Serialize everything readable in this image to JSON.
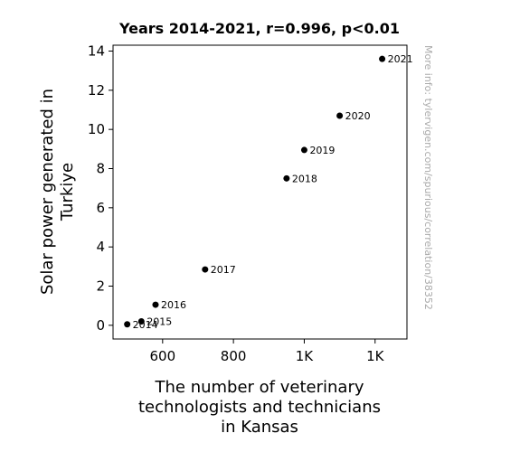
{
  "chart_data": {
    "type": "scatter",
    "title": "Years 2014-2021, r=0.996, p<0.01",
    "xlabel": [
      "The number of veterinary",
      "technologists and technicians",
      "in Kansas"
    ],
    "ylabel": [
      "Solar power generated in",
      "Turkiye"
    ],
    "xlim": [
      460,
      1290
    ],
    "ylim": [
      -0.7,
      14.3
    ],
    "x_ticks": [
      {
        "value": 600,
        "label": "600"
      },
      {
        "value": 800,
        "label": "800"
      },
      {
        "value": 1000,
        "label": "1K"
      },
      {
        "value": 1200,
        "label": "1K"
      }
    ],
    "y_ticks": [
      {
        "value": 0,
        "label": "0"
      },
      {
        "value": 2,
        "label": "2"
      },
      {
        "value": 4,
        "label": "4"
      },
      {
        "value": 6,
        "label": "6"
      },
      {
        "value": 8,
        "label": "8"
      },
      {
        "value": 10,
        "label": "10"
      },
      {
        "value": 12,
        "label": "12"
      },
      {
        "value": 14,
        "label": "14"
      }
    ],
    "points": [
      {
        "x": 500,
        "y": 0.05,
        "label": "2014"
      },
      {
        "x": 540,
        "y": 0.2,
        "label": "2015"
      },
      {
        "x": 580,
        "y": 1.05,
        "label": "2016"
      },
      {
        "x": 720,
        "y": 2.85,
        "label": "2017"
      },
      {
        "x": 950,
        "y": 7.5,
        "label": "2018"
      },
      {
        "x": 1000,
        "y": 8.95,
        "label": "2019"
      },
      {
        "x": 1100,
        "y": 10.7,
        "label": "2020"
      },
      {
        "x": 1220,
        "y": 13.6,
        "label": "2021"
      }
    ],
    "marker_color": "#000000",
    "grid": false,
    "legend": false
  },
  "watermark": "More info: tylervigen.com/spurious/correlation/38352"
}
